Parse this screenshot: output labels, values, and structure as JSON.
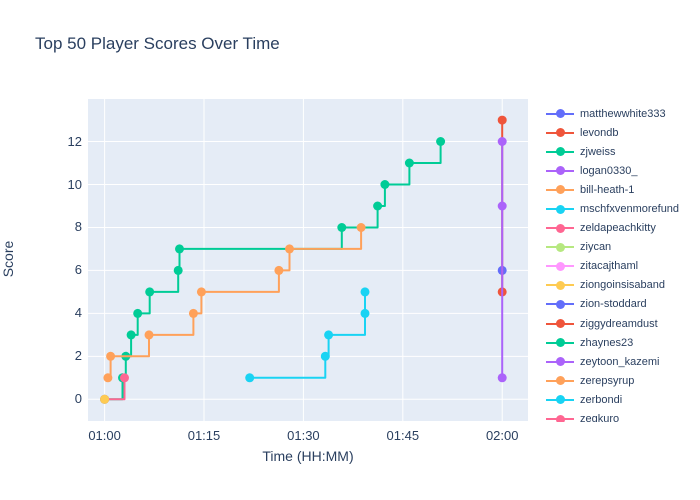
{
  "title": "Top 50 Player Scores Over Time",
  "text_color": "#2a3f5f",
  "chart_data": {
    "type": "line",
    "subtype": "step-hv",
    "title": "Top 50 Player Scores Over Time",
    "xlabel": "Time (HH:MM)",
    "ylabel": "Score",
    "plot_bgcolor": "#e5ecf6",
    "gridcolor": "#ffffff",
    "grid": "on",
    "legend_position": "right",
    "x_unit": "minutes_after_01:00",
    "x_axis": {
      "range_minutes": [
        -2.55,
        63.9
      ],
      "ticks": [
        {
          "label": "01:00",
          "minutes": 0
        },
        {
          "label": "01:15",
          "minutes": 15
        },
        {
          "label": "01:30",
          "minutes": 30
        },
        {
          "label": "01:45",
          "minutes": 45
        },
        {
          "label": "02:00",
          "minutes": 60
        }
      ]
    },
    "y_axis": {
      "range": [
        -1.0,
        14.0
      ],
      "ticks": [
        0,
        2,
        4,
        6,
        8,
        10,
        12
      ]
    },
    "series": [
      {
        "name": "matthewwhite333",
        "color": "#636efa",
        "points": [
          [
            60,
            6
          ]
        ]
      },
      {
        "name": "levondb",
        "color": "#ef553b",
        "points": [
          [
            60,
            5
          ],
          [
            60,
            13
          ]
        ]
      },
      {
        "name": "zjweiss",
        "color": "#00cc96",
        "points": [
          [
            0,
            0
          ],
          [
            2.7,
            1
          ],
          [
            3.2,
            2
          ],
          [
            4,
            3
          ],
          [
            5,
            4
          ],
          [
            6.8,
            5
          ],
          [
            11.1,
            6
          ],
          [
            11.3,
            7
          ],
          [
            35.8,
            8
          ],
          [
            41.2,
            9
          ],
          [
            42.3,
            10
          ],
          [
            46,
            11
          ],
          [
            50.7,
            12
          ]
        ]
      },
      {
        "name": "logan0330_",
        "color": "#ab63fa",
        "points": [
          [
            60,
            1
          ],
          [
            60,
            9
          ],
          [
            60,
            12
          ]
        ]
      },
      {
        "name": "bill-heath-1",
        "color": "#ffa15a",
        "points": [
          [
            0.5,
            1
          ],
          [
            0.9,
            2
          ],
          [
            6.7,
            3
          ],
          [
            13.4,
            4
          ],
          [
            14.6,
            5
          ],
          [
            26.3,
            6
          ],
          [
            27.9,
            7
          ],
          [
            38.7,
            8
          ]
        ]
      },
      {
        "name": "mschfxvenmorefund",
        "color": "#19d3f3",
        "points": [
          [
            21.9,
            1
          ],
          [
            33.3,
            2
          ],
          [
            33.8,
            3
          ],
          [
            39.3,
            4
          ],
          [
            39.3,
            5
          ]
        ]
      },
      {
        "name": "zeldapeachkitty",
        "color": "#ff6692",
        "points": [
          [
            0,
            0
          ],
          [
            3,
            1
          ]
        ]
      },
      {
        "name": "ziycan",
        "color": "#b6e880",
        "points": []
      },
      {
        "name": "zitacajthaml",
        "color": "#ff97ff",
        "points": []
      },
      {
        "name": "ziongoinsisaband",
        "color": "#fecb52",
        "points": [
          [
            0,
            0
          ]
        ]
      },
      {
        "name": "zion-stoddard",
        "color": "#636efa",
        "points": []
      },
      {
        "name": "ziggydreamdust",
        "color": "#ef553b",
        "points": []
      },
      {
        "name": "zhaynes23",
        "color": "#00cc96",
        "points": []
      },
      {
        "name": "zeytoon_kazemi",
        "color": "#ab63fa",
        "points": []
      },
      {
        "name": "zerepsyrup",
        "color": "#ffa15a",
        "points": []
      },
      {
        "name": "zerbondi",
        "color": "#19d3f3",
        "points": []
      },
      {
        "name": "zegkuro",
        "color": "#ff6692",
        "points": []
      }
    ]
  }
}
